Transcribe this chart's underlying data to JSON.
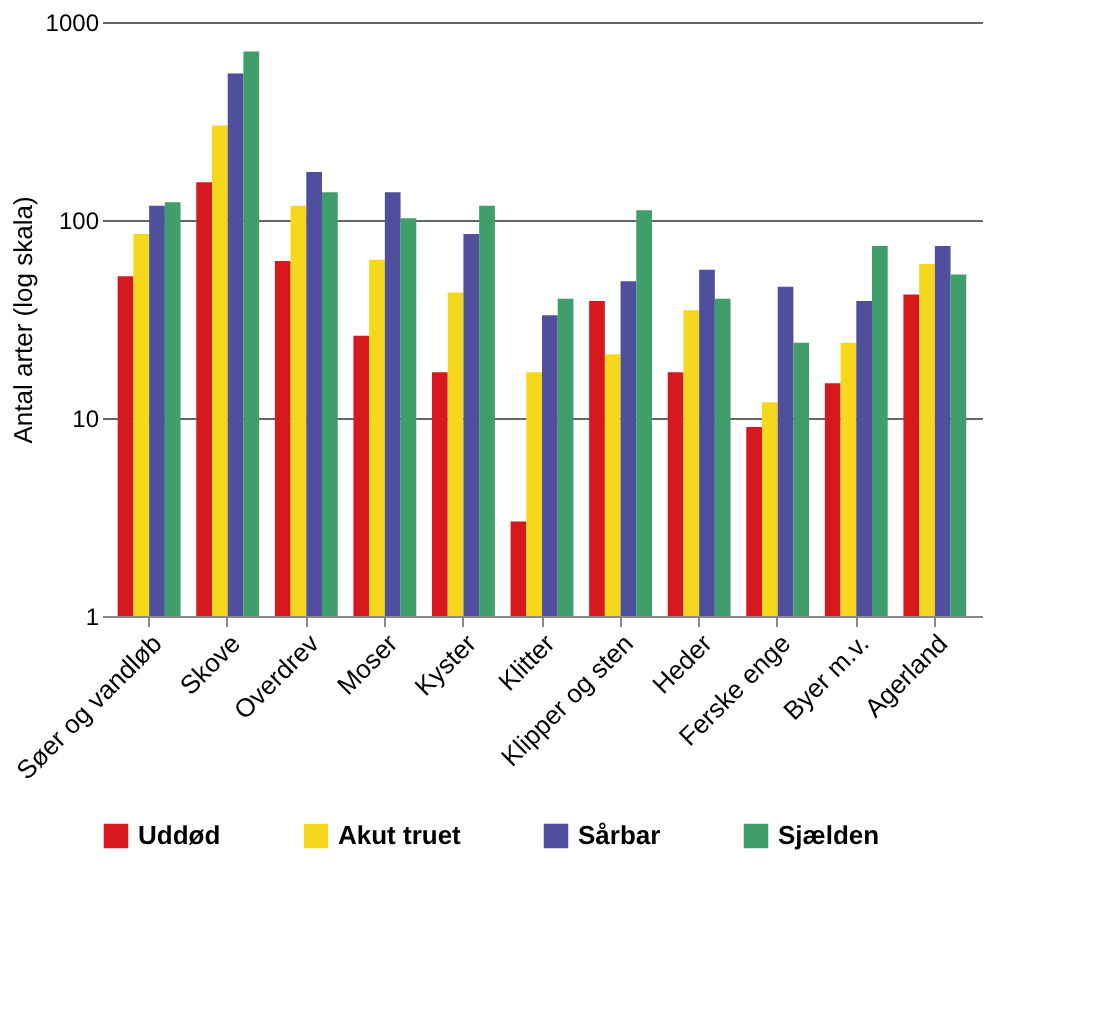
{
  "chart_data": {
    "type": "bar",
    "ylabel": "Antal arter (log skala)",
    "categories": [
      "Søer og vandløb",
      "Skove",
      "Overdrev",
      "Moser",
      "Kyster",
      "Klitter",
      "Klipper og sten",
      "Heder",
      "Ferske enge",
      "Byer m.v.",
      "Agerland"
    ],
    "series": [
      {
        "name": "Uddød",
        "color": "#d7191f",
        "values": [
          52,
          155,
          62,
          26,
          17,
          3,
          39,
          17,
          9,
          15,
          42
        ]
      },
      {
        "name": "Akut truet",
        "color": "#f5d81c",
        "values": [
          85,
          300,
          118,
          63,
          43,
          17,
          21,
          35,
          12,
          24,
          60
        ]
      },
      {
        "name": "Sårbar",
        "color": "#4f4f9e",
        "values": [
          118,
          550,
          175,
          138,
          85,
          33,
          49,
          56,
          46,
          39,
          74
        ]
      },
      {
        "name": "Sjælden",
        "color": "#3f9e6a",
        "values": [
          123,
          710,
          138,
          102,
          118,
          40,
          112,
          40,
          24,
          74,
          53
        ]
      }
    ],
    "log": "y",
    "ylim": [
      1,
      1000
    ],
    "yticks": [
      1,
      10,
      100,
      1000
    ],
    "grid": "y",
    "legend": "bottom"
  }
}
